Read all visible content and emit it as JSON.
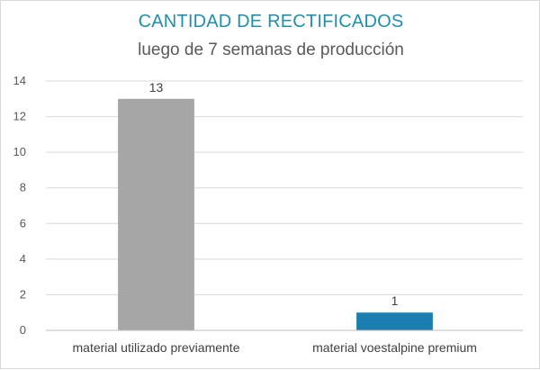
{
  "chart_data": {
    "type": "bar",
    "title": "CANTIDAD DE RECTIFICADOS",
    "subtitle": "luego de 7 semanas de producción",
    "categories": [
      "material utilizado previamente",
      "material voestalpine premium"
    ],
    "values": [
      13,
      1
    ],
    "data_labels": [
      "13",
      "1"
    ],
    "colors": [
      "#a6a6a6",
      "#1a7fb0"
    ],
    "ylim": [
      0,
      14
    ],
    "yticks": [
      0,
      2,
      4,
      6,
      8,
      10,
      12,
      14
    ],
    "grid": true,
    "legend": "none"
  }
}
